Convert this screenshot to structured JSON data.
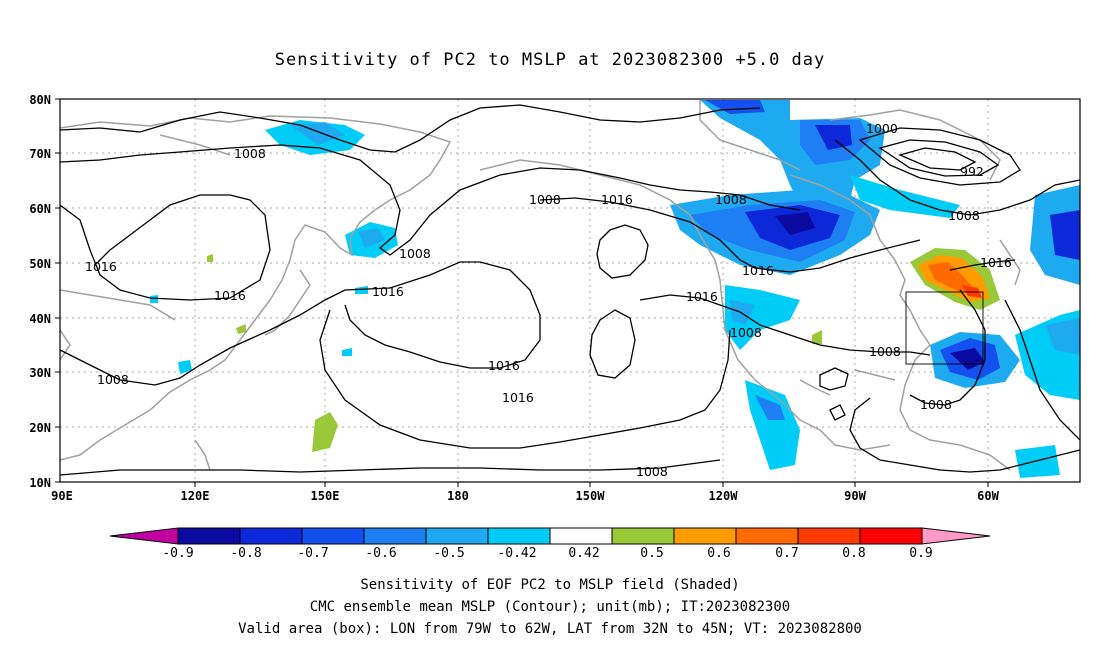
{
  "title": "Sensitivity of PC2 to MSLP at 2023082300 +5.0 day",
  "map": {
    "lon_ticks": [
      "90E",
      "120E",
      "150E",
      "180",
      "150W",
      "120W",
      "90W",
      "60W"
    ],
    "lat_ticks": [
      "80N",
      "70N",
      "60N",
      "50N",
      "40N",
      "30N",
      "20N",
      "10N"
    ],
    "contour_labels": [
      "1008",
      "1008",
      "1008",
      "1008",
      "1008",
      "1008",
      "1008",
      "1008",
      "1008",
      "1000",
      "992",
      "1016",
      "1016",
      "1016",
      "1016",
      "1016",
      "1016",
      "1016",
      "1016",
      "1016",
      "1008"
    ],
    "valid_box": {
      "lon_from": "79W",
      "lon_to": "62W",
      "lat_from": "32N",
      "lat_to": "45N"
    }
  },
  "colorbar": {
    "labels": [
      "-0.9",
      "-0.8",
      "-0.7",
      "-0.6",
      "-0.5",
      "-0.42",
      "0.42",
      "0.5",
      "0.6",
      "0.7",
      "0.8",
      "0.9"
    ],
    "colors": [
      "#c000a0",
      "#0a0aa0",
      "#0c28d8",
      "#1450f0",
      "#1e7ef4",
      "#1eaaf0",
      "#00ccf8",
      "#ffffff",
      "#99c838",
      "#ff9c00",
      "#ff6a00",
      "#ff3a00",
      "#ff0000",
      "#ff99c8"
    ]
  },
  "caption": {
    "line1": "Sensitivity of EOF PC2 to MSLP field (Shaded)",
    "line2": "CMC ensemble mean MSLP (Contour); unit(mb); IT:2023082300",
    "line3": "Valid area (box): LON from 79W to 62W, LAT from 32N to 45N; VT: 2023082800"
  }
}
